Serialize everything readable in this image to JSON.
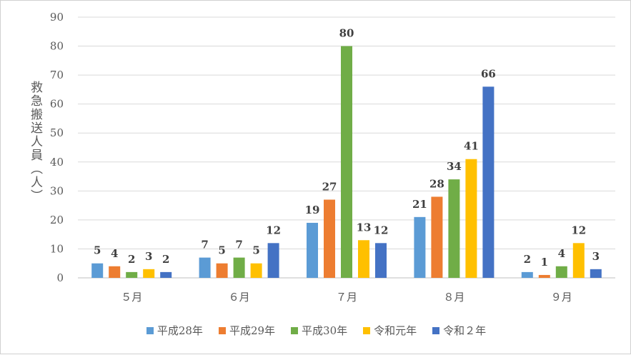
{
  "chart_data": {
    "type": "bar",
    "title": "",
    "xlabel": "",
    "ylabel": "救急搬送人員（人）",
    "ylim": [
      0,
      90
    ],
    "yticks": [
      0,
      10,
      20,
      30,
      40,
      50,
      60,
      70,
      80,
      90
    ],
    "grid": true,
    "legend_position": "bottom",
    "categories": [
      "５月",
      "６月",
      "７月",
      "８月",
      "９月"
    ],
    "series": [
      {
        "name": "平成28年",
        "color": "#5b9bd5",
        "values": [
          5,
          7,
          19,
          21,
          2
        ]
      },
      {
        "name": "平成29年",
        "color": "#ed7d31",
        "values": [
          4,
          5,
          27,
          28,
          1
        ]
      },
      {
        "name": "平成30年",
        "color": "#70ad47",
        "values": [
          2,
          7,
          80,
          34,
          4
        ]
      },
      {
        "name": "令和元年",
        "color": "#ffc000",
        "values": [
          3,
          5,
          13,
          41,
          12
        ]
      },
      {
        "name": "令和２年",
        "color": "#4472c4",
        "values": [
          2,
          12,
          12,
          66,
          3
        ]
      }
    ]
  }
}
